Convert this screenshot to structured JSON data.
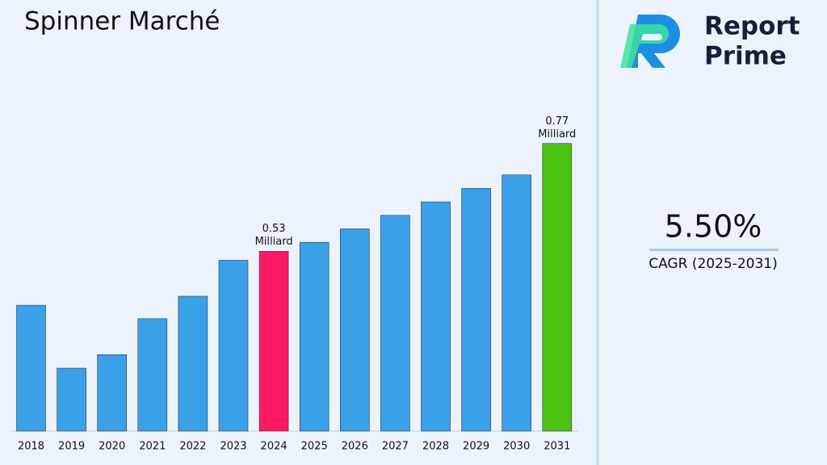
{
  "chart_data": {
    "type": "bar",
    "title": "Spinner Marché",
    "categories": [
      "2018",
      "2019",
      "2020",
      "2021",
      "2022",
      "2023",
      "2024",
      "2025",
      "2026",
      "2027",
      "2028",
      "2029",
      "2030",
      "2031"
    ],
    "values": [
      0.41,
      0.27,
      0.3,
      0.38,
      0.43,
      0.51,
      0.53,
      0.55,
      0.58,
      0.61,
      0.64,
      0.67,
      0.7,
      0.77
    ],
    "value_labels": [
      null,
      null,
      null,
      null,
      null,
      null,
      "0.53 Milliard",
      null,
      null,
      null,
      null,
      null,
      null,
      "0.77 Milliard"
    ],
    "colors": [
      "#3aa0e8",
      "#3aa0e8",
      "#3aa0e8",
      "#3aa0e8",
      "#3aa0e8",
      "#3aa0e8",
      "#fc1a63",
      "#3aa0e8",
      "#3aa0e8",
      "#3aa0e8",
      "#3aa0e8",
      "#3aa0e8",
      "#3aa0e8",
      "#4cc313"
    ],
    "ylim": [
      0.13,
      0.8
    ],
    "grid": false
  },
  "sidebar": {
    "brand_line1": "Report",
    "brand_line2": "Prime",
    "cagr_value": "5.50%",
    "cagr_label": "CAGR (2025-2031)"
  }
}
